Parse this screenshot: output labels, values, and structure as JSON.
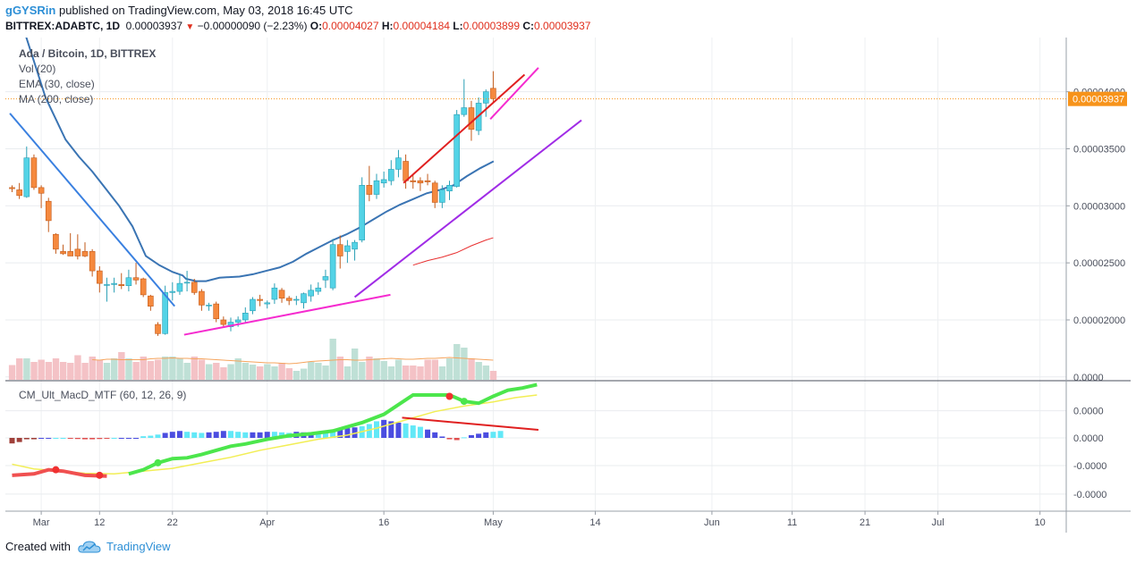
{
  "header": {
    "user": "gGYSRin",
    "published_text": "published on TradingView.com, May 03, 2018 16:45 UTC",
    "symbol": "BITTREX:ADABTC, 1D",
    "last": "0.00003937",
    "change": "−0.00000090 (−2.23%)",
    "o_label": "O:",
    "o_value": "0.00004027",
    "h_label": "H:",
    "h_value": "0.00004184",
    "l_label": "L:",
    "l_value": "0.00003899",
    "c_label": "C:",
    "c_value": "0.00003937"
  },
  "legend": {
    "title": "Ada / Bitcoin, 1D, BITTREX",
    "vol": "Vol (20)",
    "ema": "EMA (30, close)",
    "ma": "MA (200, close)",
    "macd": "CM_Ult_MacD_MTF (60, 12, 26, 9)"
  },
  "price_label": "0.00003937",
  "footer": {
    "created": "Created with",
    "brand": "TradingView"
  },
  "colors": {
    "up": "#53d3e6",
    "down": "#f5893e",
    "ema": "#3a74b3",
    "ma": "#e83030",
    "vol_up": "#bfe0d6",
    "vol_down": "#f4c2c6",
    "vol_ma": "#f5a45d",
    "trend_blue": "#3a80e0",
    "trend_magenta": "#f52bcf",
    "trend_purple": "#a02ce6",
    "trend_red": "#e02020",
    "macd_line": "#4ce64c",
    "signal_line": "#f2ee55",
    "macd_hist_light": "#62e8f7",
    "macd_hist_dark": "#4b4de0",
    "accent": "#f7931a"
  },
  "chart_data": [
    {
      "type": "candlestick",
      "title": "Ada / Bitcoin, 1D, BITTREX",
      "y_axis_labels": [
        "0.00004000",
        "0.00003500",
        "0.00003000",
        "0.00002500",
        "0.00002000"
      ],
      "y_axis_values": [
        4e-05,
        3.5e-05,
        3e-05,
        2.5e-05,
        2e-05
      ],
      "ylim": [
        1.475e-05,
        4.475e-05
      ],
      "x_axis_labels": [
        "Mar",
        "12",
        "22",
        "Apr",
        "16",
        "May",
        "14",
        "Jun",
        "11",
        "21",
        "Jul",
        "10"
      ],
      "x_axis_days": [
        4,
        12,
        22,
        35,
        51,
        66,
        80,
        96,
        107,
        117,
        127,
        141
      ],
      "current_price": 3.937e-05,
      "candles": [
        {
          "d": 0,
          "o": 3.16e-05,
          "h": 3.18e-05,
          "l": 3.12e-05,
          "c": 3.15e-05
        },
        {
          "d": 1,
          "o": 3.14e-05,
          "h": 3.2e-05,
          "l": 3.06e-05,
          "c": 3.09e-05
        },
        {
          "d": 2,
          "o": 3.08e-05,
          "h": 3.52e-05,
          "l": 3.07e-05,
          "c": 3.42e-05
        },
        {
          "d": 3,
          "o": 3.42e-05,
          "h": 3.45e-05,
          "l": 3.14e-05,
          "c": 3.16e-05
        },
        {
          "d": 4,
          "o": 3.16e-05,
          "h": 3.18e-05,
          "l": 2.98e-05,
          "c": 3.11e-05
        },
        {
          "d": 5,
          "o": 3.04e-05,
          "h": 3.07e-05,
          "l": 2.77e-05,
          "c": 2.87e-05
        },
        {
          "d": 6,
          "o": 2.75e-05,
          "h": 2.76e-05,
          "l": 2.58e-05,
          "c": 2.62e-05
        },
        {
          "d": 7,
          "o": 2.6e-05,
          "h": 2.66e-05,
          "l": 2.57e-05,
          "c": 2.58e-05
        },
        {
          "d": 8,
          "o": 2.6e-05,
          "h": 2.76e-05,
          "l": 2.56e-05,
          "c": 2.56e-05
        },
        {
          "d": 9,
          "o": 2.62e-05,
          "h": 2.75e-05,
          "l": 2.53e-05,
          "c": 2.56e-05
        },
        {
          "d": 10,
          "o": 2.6e-05,
          "h": 2.68e-05,
          "l": 2.55e-05,
          "c": 2.56e-05
        },
        {
          "d": 11,
          "o": 2.6e-05,
          "h": 2.62e-05,
          "l": 2.38e-05,
          "c": 2.43e-05
        },
        {
          "d": 12,
          "o": 2.43e-05,
          "h": 2.47e-05,
          "l": 2.24e-05,
          "c": 2.32e-05
        },
        {
          "d": 13,
          "o": 2.31e-05,
          "h": 2.37e-05,
          "l": 2.16e-05,
          "c": 2.31e-05
        },
        {
          "d": 14,
          "o": 2.31e-05,
          "h": 2.37e-05,
          "l": 2.24e-05,
          "c": 2.32e-05
        },
        {
          "d": 15,
          "o": 2.31e-05,
          "h": 2.41e-05,
          "l": 2.27e-05,
          "c": 2.3e-05
        },
        {
          "d": 16,
          "o": 2.3e-05,
          "h": 2.44e-05,
          "l": 2.25e-05,
          "c": 2.37e-05
        },
        {
          "d": 17,
          "o": 2.37e-05,
          "h": 2.5e-05,
          "l": 2.31e-05,
          "c": 2.35e-05
        },
        {
          "d": 18,
          "o": 2.36e-05,
          "h": 2.37e-05,
          "l": 2.2e-05,
          "c": 2.22e-05
        },
        {
          "d": 19,
          "o": 2.21e-05,
          "h": 2.22e-05,
          "l": 2.08e-05,
          "c": 2.12e-05
        },
        {
          "d": 20,
          "o": 1.96e-05,
          "h": 1.98e-05,
          "l": 1.86e-05,
          "c": 1.88e-05
        },
        {
          "d": 21,
          "o": 1.88e-05,
          "h": 2.3e-05,
          "l": 1.87e-05,
          "c": 2.24e-05
        },
        {
          "d": 22,
          "o": 2.24e-05,
          "h": 2.33e-05,
          "l": 2.17e-05,
          "c": 2.25e-05
        },
        {
          "d": 23,
          "o": 2.25e-05,
          "h": 2.4e-05,
          "l": 2.22e-05,
          "c": 2.32e-05
        },
        {
          "d": 24,
          "o": 2.33e-05,
          "h": 2.43e-05,
          "l": 2.25e-05,
          "c": 2.33e-05
        },
        {
          "d": 25,
          "o": 2.33e-05,
          "h": 2.36e-05,
          "l": 2.22e-05,
          "c": 2.24e-05
        },
        {
          "d": 26,
          "o": 2.25e-05,
          "h": 2.27e-05,
          "l": 2.08e-05,
          "c": 2.13e-05
        },
        {
          "d": 27,
          "o": 2.13e-05,
          "h": 2.15e-05,
          "l": 2.08e-05,
          "c": 2.13e-05
        },
        {
          "d": 28,
          "o": 2.14e-05,
          "h": 2.16e-05,
          "l": 1.98e-05,
          "c": 2.01e-05
        },
        {
          "d": 29,
          "o": 2e-05,
          "h": 2.03e-05,
          "l": 1.93e-05,
          "c": 1.96e-05
        },
        {
          "d": 30,
          "o": 1.94e-05,
          "h": 2.02e-05,
          "l": 1.9e-05,
          "c": 1.98e-05
        },
        {
          "d": 31,
          "o": 1.98e-05,
          "h": 2.03e-05,
          "l": 1.94e-05,
          "c": 2e-05
        },
        {
          "d": 32,
          "o": 2e-05,
          "h": 2.11e-05,
          "l": 1.97e-05,
          "c": 2.06e-05
        },
        {
          "d": 33,
          "o": 2.08e-05,
          "h": 2.2e-05,
          "l": 2.05e-05,
          "c": 2.18e-05
        },
        {
          "d": 34,
          "o": 2.18e-05,
          "h": 2.22e-05,
          "l": 2.12e-05,
          "c": 2.17e-05
        },
        {
          "d": 35,
          "o": 2.14e-05,
          "h": 2.17e-05,
          "l": 2.1e-05,
          "c": 2.15e-05
        },
        {
          "d": 36,
          "o": 2.18e-05,
          "h": 2.32e-05,
          "l": 2.14e-05,
          "c": 2.28e-05
        },
        {
          "d": 37,
          "o": 2.26e-05,
          "h": 2.28e-05,
          "l": 2.15e-05,
          "c": 2.19e-05
        },
        {
          "d": 38,
          "o": 2.19e-05,
          "h": 2.21e-05,
          "l": 2.13e-05,
          "c": 2.17e-05
        },
        {
          "d": 39,
          "o": 2.18e-05,
          "h": 2.21e-05,
          "l": 2.13e-05,
          "c": 2.18e-05
        },
        {
          "d": 40,
          "o": 2.15e-05,
          "h": 2.24e-05,
          "l": 2.1e-05,
          "c": 2.23e-05
        },
        {
          "d": 41,
          "o": 2.21e-05,
          "h": 2.31e-05,
          "l": 2.16e-05,
          "c": 2.26e-05
        },
        {
          "d": 42,
          "o": 2.25e-05,
          "h": 2.33e-05,
          "l": 2.22e-05,
          "c": 2.28e-05
        },
        {
          "d": 43,
          "o": 2.35e-05,
          "h": 2.44e-05,
          "l": 2.28e-05,
          "c": 2.38e-05
        },
        {
          "d": 44,
          "o": 2.28e-05,
          "h": 2.71e-05,
          "l": 2.26e-05,
          "c": 2.66e-05
        },
        {
          "d": 45,
          "o": 2.66e-05,
          "h": 2.74e-05,
          "l": 2.45e-05,
          "c": 2.56e-05
        },
        {
          "d": 46,
          "o": 2.6e-05,
          "h": 2.7e-05,
          "l": 2.5e-05,
          "c": 2.65e-05
        },
        {
          "d": 47,
          "o": 2.62e-05,
          "h": 2.7e-05,
          "l": 2.52e-05,
          "c": 2.68e-05
        },
        {
          "d": 48,
          "o": 2.7e-05,
          "h": 3.25e-05,
          "l": 2.68e-05,
          "c": 3.18e-05
        },
        {
          "d": 49,
          "o": 3.18e-05,
          "h": 3.35e-05,
          "l": 3.04e-05,
          "c": 3.1e-05
        },
        {
          "d": 50,
          "o": 3.1e-05,
          "h": 3.28e-05,
          "l": 3.06e-05,
          "c": 3.22e-05
        },
        {
          "d": 51,
          "o": 3.2e-05,
          "h": 3.3e-05,
          "l": 3.16e-05,
          "c": 3.23e-05
        },
        {
          "d": 52,
          "o": 3.22e-05,
          "h": 3.4e-05,
          "l": 3.18e-05,
          "c": 3.32e-05
        },
        {
          "d": 53,
          "o": 3.32e-05,
          "h": 3.49e-05,
          "l": 3.25e-05,
          "c": 3.42e-05
        },
        {
          "d": 54,
          "o": 3.39e-05,
          "h": 3.45e-05,
          "l": 3.15e-05,
          "c": 3.22e-05
        },
        {
          "d": 55,
          "o": 3.22e-05,
          "h": 3.28e-05,
          "l": 3.15e-05,
          "c": 3.21e-05
        },
        {
          "d": 56,
          "o": 3.22e-05,
          "h": 3.25e-05,
          "l": 3.13e-05,
          "c": 3.2e-05
        },
        {
          "d": 57,
          "o": 3.22e-05,
          "h": 3.28e-05,
          "l": 3.18e-05,
          "c": 3.21e-05
        },
        {
          "d": 58,
          "o": 3.2e-05,
          "h": 3.22e-05,
          "l": 2.98e-05,
          "c": 3.03e-05
        },
        {
          "d": 59,
          "o": 3.03e-05,
          "h": 3.18e-05,
          "l": 2.98e-05,
          "c": 3.14e-05
        },
        {
          "d": 60,
          "o": 3.13e-05,
          "h": 3.22e-05,
          "l": 3.05e-05,
          "c": 3.18e-05
        },
        {
          "d": 61,
          "o": 3.17e-05,
          "h": 3.84e-05,
          "l": 3.16e-05,
          "c": 3.8e-05
        },
        {
          "d": 62,
          "o": 3.8e-05,
          "h": 4.11e-05,
          "l": 3.78e-05,
          "c": 3.86e-05
        },
        {
          "d": 63,
          "o": 3.86e-05,
          "h": 3.92e-05,
          "l": 3.57e-05,
          "c": 3.67e-05
        },
        {
          "d": 64,
          "o": 3.66e-05,
          "h": 3.95e-05,
          "l": 3.62e-05,
          "c": 3.9e-05
        },
        {
          "d": 65,
          "o": 3.9e-05,
          "h": 4.02e-05,
          "l": 3.78e-05,
          "c": 4e-05
        },
        {
          "d": 66,
          "o": 4.03e-05,
          "h": 4.18e-05,
          "l": 3.9e-05,
          "c": 3.94e-05
        }
      ],
      "volume": [
        0.33,
        0.48,
        0.48,
        0.4,
        0.45,
        0.4,
        0.48,
        0.4,
        0.38,
        0.55,
        0.38,
        0.52,
        0.45,
        0.38,
        0.48,
        0.62,
        0.48,
        0.4,
        0.52,
        0.42,
        0.45,
        0.52,
        0.52,
        0.48,
        0.38,
        0.52,
        0.45,
        0.35,
        0.38,
        0.28,
        0.35,
        0.48,
        0.38,
        0.34,
        0.3,
        0.35,
        0.3,
        0.38,
        0.26,
        0.2,
        0.25,
        0.4,
        0.38,
        0.32,
        0.92,
        0.52,
        0.3,
        0.7,
        0.4,
        0.52,
        0.48,
        0.42,
        0.3,
        0.45,
        0.32,
        0.32,
        0.3,
        0.45,
        0.45,
        0.3,
        0.48,
        0.8,
        0.72,
        0.48,
        0.4,
        0.32,
        0.2
      ],
      "vol_ma": [
        0.45,
        0.44,
        0.46,
        0.46,
        0.45,
        0.45,
        0.45,
        0.45,
        0.47,
        0.48,
        0.48,
        0.49,
        0.48,
        0.48,
        0.47,
        0.47,
        0.46,
        0.45,
        0.44,
        0.43,
        0.42,
        0.41,
        0.4,
        0.39,
        0.38,
        0.38,
        0.37,
        0.36,
        0.37,
        0.39,
        0.41,
        0.42,
        0.43,
        0.44,
        0.45,
        0.45,
        0.44,
        0.44,
        0.45,
        0.46,
        0.47,
        0.48,
        0.47,
        0.46,
        0.46,
        0.47,
        0.48,
        0.48,
        0.49,
        0.5,
        0.49,
        0.48,
        0.47,
        0.46,
        0.45,
        0.44
      ]
    },
    {
      "type": "macd",
      "title": "CM_Ult_MacD_MTF (60, 12, 26, 9)",
      "y_axis_labels": [
        "0.0000",
        "0.0000",
        "0.0000",
        "-0.0000",
        "-0.0000"
      ],
      "macd_points": [
        [
          0,
          -1.35
        ],
        [
          3,
          -1.3
        ],
        [
          5,
          -1.15
        ],
        [
          7,
          -1.2
        ],
        [
          10,
          -1.35
        ],
        [
          13,
          -1.38
        ],
        [
          16,
          -1.3
        ],
        [
          18,
          -1.15
        ],
        [
          20,
          -0.9
        ],
        [
          22,
          -0.75
        ],
        [
          24,
          -0.72
        ],
        [
          26,
          -0.6
        ],
        [
          28,
          -0.45
        ],
        [
          30,
          -0.3
        ],
        [
          32,
          -0.22
        ],
        [
          35,
          -0.05
        ],
        [
          38,
          0.08
        ],
        [
          41,
          0.15
        ],
        [
          44,
          0.25
        ],
        [
          48,
          0.55
        ],
        [
          51,
          0.85
        ],
        [
          53,
          1.2
        ],
        [
          55,
          1.55
        ],
        [
          60,
          1.55
        ],
        [
          62,
          1.32
        ],
        [
          64,
          1.25
        ],
        [
          66,
          1.5
        ],
        [
          68,
          1.72
        ],
        [
          70,
          1.8
        ],
        [
          72,
          1.92
        ]
      ],
      "signal_points": [
        [
          0,
          -0.95
        ],
        [
          3,
          -1.12
        ],
        [
          6,
          -1.18
        ],
        [
          10,
          -1.28
        ],
        [
          14,
          -1.3
        ],
        [
          18,
          -1.2
        ],
        [
          22,
          -1.1
        ],
        [
          26,
          -0.9
        ],
        [
          30,
          -0.7
        ],
        [
          34,
          -0.45
        ],
        [
          38,
          -0.25
        ],
        [
          42,
          -0.05
        ],
        [
          46,
          0.1
        ],
        [
          50,
          0.35
        ],
        [
          54,
          0.65
        ],
        [
          58,
          0.95
        ],
        [
          62,
          1.15
        ],
        [
          66,
          1.3
        ],
        [
          69,
          1.45
        ],
        [
          72,
          1.55
        ]
      ],
      "histogram": [
        -0.2,
        -0.15,
        -0.05,
        -0.05,
        0,
        0,
        0,
        0,
        -0.03,
        -0.04,
        -0.05,
        -0.05,
        -0.04,
        -0.03,
        0,
        0,
        0,
        0,
        0.06,
        0.08,
        0.12,
        0.18,
        0.22,
        0.25,
        0.22,
        0.2,
        0.18,
        0.2,
        0.22,
        0.25,
        0.25,
        0.22,
        0.2,
        0.2,
        0.2,
        0.22,
        0.22,
        0.2,
        0.18,
        0.22,
        0.2,
        0.2,
        0.2,
        0.18,
        0.25,
        0.3,
        0.35,
        0.38,
        0.42,
        0.5,
        0.6,
        0.65,
        0.6,
        0.55,
        0.52,
        0.45,
        0.4,
        0.3,
        0.2,
        0.05,
        -0.05,
        -0.08,
        0.02,
        0.1,
        0.15,
        0.2,
        0.22,
        0.25
      ],
      "crosses": [
        [
          6,
          -1.15
        ],
        [
          12,
          -1.35
        ],
        [
          20,
          -0.9
        ],
        [
          60,
          1.5
        ],
        [
          62,
          1.32
        ]
      ]
    }
  ]
}
